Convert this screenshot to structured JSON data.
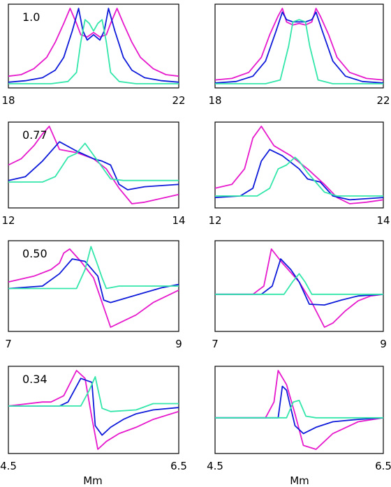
{
  "x_axis_label": "Mm",
  "colors": {
    "magenta": "#e619cc",
    "blue": "#0d1ad9",
    "green": "#33e6aa",
    "frame": "#000000"
  },
  "chart_data": [
    {
      "type": "line",
      "panel_label": "1.0",
      "x_ticks": [
        "18",
        "22"
      ],
      "xlim": [
        18,
        22
      ],
      "series": [
        {
          "color": "#e619cc",
          "x": [
            18,
            18.3,
            18.6,
            18.9,
            19.1,
            19.3,
            19.45,
            19.6,
            19.7,
            19.85,
            20,
            20.15,
            20.3,
            20.4,
            20.55,
            20.7,
            20.9,
            21.1,
            21.4,
            21.7,
            22
          ],
          "y": [
            0.1,
            0.12,
            0.2,
            0.35,
            0.55,
            0.8,
            1.0,
            0.8,
            0.65,
            0.62,
            0.68,
            0.62,
            0.65,
            0.8,
            1.0,
            0.8,
            0.55,
            0.35,
            0.2,
            0.12,
            0.1
          ]
        },
        {
          "color": "#0d1ad9",
          "x": [
            18,
            18.4,
            18.8,
            19.1,
            19.3,
            19.5,
            19.65,
            19.75,
            19.85,
            20,
            20.15,
            20.25,
            20.35,
            20.5,
            20.7,
            20.9,
            21.2,
            21.6,
            22
          ],
          "y": [
            0.02,
            0.04,
            0.08,
            0.18,
            0.35,
            0.7,
            1.0,
            0.7,
            0.58,
            0.65,
            0.58,
            0.7,
            1.0,
            0.7,
            0.35,
            0.18,
            0.08,
            0.04,
            0.02
          ]
        },
        {
          "color": "#33e6aa",
          "x": [
            18,
            19,
            19.4,
            19.6,
            19.7,
            19.8,
            19.9,
            20,
            20.1,
            20.2,
            20.3,
            20.4,
            20.6,
            21,
            22
          ],
          "y": [
            0,
            0,
            0.03,
            0.15,
            0.55,
            0.85,
            0.8,
            0.7,
            0.8,
            0.85,
            0.55,
            0.15,
            0.03,
            0,
            0
          ]
        }
      ]
    },
    {
      "type": "line",
      "panel_label": "",
      "x_ticks": [
        "18",
        "22"
      ],
      "xlim": [
        18,
        22
      ],
      "series": [
        {
          "color": "#e619cc",
          "x": [
            18,
            18.4,
            18.8,
            19.1,
            19.3,
            19.5,
            19.6,
            19.7,
            19.85,
            20,
            20.15,
            20.3,
            20.4,
            20.5,
            20.7,
            20.9,
            21.2,
            21.6,
            22
          ],
          "y": [
            0.05,
            0.07,
            0.15,
            0.35,
            0.65,
            0.9,
            1.0,
            0.82,
            0.78,
            0.8,
            0.78,
            0.82,
            1.0,
            0.9,
            0.65,
            0.35,
            0.15,
            0.07,
            0.05
          ]
        },
        {
          "color": "#0d1ad9",
          "x": [
            18,
            18.5,
            18.9,
            19.2,
            19.45,
            19.6,
            19.7,
            19.85,
            20,
            20.15,
            20.3,
            20.4,
            20.55,
            20.8,
            21.1,
            21.5,
            22
          ],
          "y": [
            0.01,
            0.03,
            0.1,
            0.3,
            0.7,
            0.95,
            0.85,
            0.82,
            0.82,
            0.82,
            0.85,
            0.95,
            0.7,
            0.3,
            0.1,
            0.03,
            0.01
          ]
        },
        {
          "color": "#33e6aa",
          "x": [
            18,
            19.2,
            19.55,
            19.75,
            19.85,
            20,
            20.15,
            20.25,
            20.45,
            20.8,
            22
          ],
          "y": [
            0,
            0,
            0.05,
            0.5,
            0.82,
            0.85,
            0.82,
            0.5,
            0.05,
            0,
            0
          ]
        }
      ]
    },
    {
      "type": "line",
      "panel_label": "0.77",
      "x_ticks": [
        "12",
        "14"
      ],
      "xlim": [
        12,
        14
      ],
      "series": [
        {
          "color": "#e619cc",
          "x": [
            12,
            12.15,
            12.3,
            12.4,
            12.48,
            12.6,
            12.8,
            13,
            13.15,
            13.3,
            13.45,
            13.6,
            13.8,
            14
          ],
          "y": [
            0.5,
            0.58,
            0.75,
            0.9,
            1.0,
            0.7,
            0.66,
            0.58,
            0.45,
            0.2,
            0.0,
            0.02,
            0.07,
            0.12
          ]
        },
        {
          "color": "#0d1ad9",
          "x": [
            12,
            12.2,
            12.4,
            12.6,
            12.8,
            13,
            13.1,
            13.2,
            13.3,
            13.4,
            13.6,
            14
          ],
          "y": [
            0.3,
            0.35,
            0.55,
            0.8,
            0.68,
            0.58,
            0.55,
            0.5,
            0.25,
            0.18,
            0.22,
            0.25
          ]
        },
        {
          "color": "#33e6aa",
          "x": [
            12,
            12.4,
            12.55,
            12.7,
            12.8,
            12.9,
            13.05,
            13.2,
            13.35,
            14
          ],
          "y": [
            0.28,
            0.28,
            0.35,
            0.6,
            0.65,
            0.78,
            0.55,
            0.32,
            0.3,
            0.3
          ]
        }
      ]
    },
    {
      "type": "line",
      "panel_label": "",
      "x_ticks": [
        "12",
        "14"
      ],
      "xlim": [
        12,
        14
      ],
      "series": [
        {
          "color": "#e619cc",
          "x": [
            12,
            12.2,
            12.35,
            12.45,
            12.55,
            12.7,
            12.9,
            13.1,
            13.3,
            13.45,
            13.6,
            13.8,
            14
          ],
          "y": [
            0.2,
            0.25,
            0.45,
            0.85,
            1.0,
            0.75,
            0.62,
            0.45,
            0.25,
            0.08,
            0.0,
            0.02,
            0.05
          ]
        },
        {
          "color": "#0d1ad9",
          "x": [
            12,
            12.3,
            12.45,
            12.55,
            12.65,
            12.8,
            13,
            13.1,
            13.25,
            13.4,
            13.6,
            14
          ],
          "y": [
            0.08,
            0.1,
            0.2,
            0.55,
            0.7,
            0.62,
            0.45,
            0.32,
            0.28,
            0.1,
            0.05,
            0.08
          ]
        },
        {
          "color": "#33e6aa",
          "x": [
            12,
            12.5,
            12.65,
            12.75,
            12.85,
            12.95,
            13,
            13.1,
            13.3,
            13.45,
            14
          ],
          "y": [
            0.1,
            0.1,
            0.2,
            0.45,
            0.5,
            0.6,
            0.55,
            0.4,
            0.15,
            0.1,
            0.1
          ]
        }
      ]
    },
    {
      "type": "line",
      "panel_label": "0.50",
      "x_ticks": [
        "7",
        "9"
      ],
      "xlim": [
        7,
        9
      ],
      "series": [
        {
          "color": "#e619cc",
          "x": [
            7,
            7.3,
            7.5,
            7.6,
            7.65,
            7.72,
            7.85,
            8,
            8.1,
            8.2,
            8.3,
            8.5,
            8.7,
            9
          ],
          "y": [
            0.55,
            0.62,
            0.7,
            0.78,
            0.9,
            0.95,
            0.8,
            0.6,
            0.3,
            0.0,
            0.05,
            0.15,
            0.3,
            0.45
          ]
        },
        {
          "color": "#0d1ad9",
          "x": [
            7,
            7.4,
            7.6,
            7.75,
            7.9,
            8.05,
            8.12,
            8.2,
            8.4,
            8.6,
            8.8,
            9
          ],
          "y": [
            0.47,
            0.5,
            0.65,
            0.83,
            0.8,
            0.62,
            0.33,
            0.3,
            0.36,
            0.42,
            0.48,
            0.52
          ]
        },
        {
          "color": "#33e6aa",
          "x": [
            7,
            7.8,
            7.9,
            7.97,
            8.05,
            8.1,
            8.15,
            8.3,
            9
          ],
          "y": [
            0.47,
            0.47,
            0.7,
            0.98,
            0.75,
            0.6,
            0.47,
            0.5,
            0.5
          ]
        }
      ]
    },
    {
      "type": "line",
      "panel_label": "",
      "x_ticks": [
        "7",
        "9"
      ],
      "xlim": [
        7,
        9
      ],
      "series": [
        {
          "color": "#e619cc",
          "x": [
            7,
            7.45,
            7.58,
            7.67,
            7.8,
            8,
            8.15,
            8.3,
            8.4,
            8.55,
            8.7,
            8.85,
            9
          ],
          "y": [
            0.4,
            0.4,
            0.5,
            0.95,
            0.78,
            0.55,
            0.3,
            0.0,
            0.05,
            0.2,
            0.32,
            0.38,
            0.4
          ]
        },
        {
          "color": "#0d1ad9",
          "x": [
            7,
            7.55,
            7.68,
            7.78,
            7.9,
            8,
            8.12,
            8.3,
            8.5,
            8.7,
            9
          ],
          "y": [
            0.4,
            0.4,
            0.5,
            0.83,
            0.7,
            0.55,
            0.28,
            0.27,
            0.33,
            0.38,
            0.4
          ]
        },
        {
          "color": "#33e6aa",
          "x": [
            7,
            7.82,
            7.92,
            8,
            8.07,
            8.15,
            8.3,
            9
          ],
          "y": [
            0.4,
            0.4,
            0.55,
            0.65,
            0.55,
            0.4,
            0.4,
            0.4
          ]
        }
      ]
    },
    {
      "type": "line",
      "panel_label": "0.34",
      "x_ticks": [
        "4.5",
        "6.5"
      ],
      "xlim": [
        4.5,
        6.5
      ],
      "series": [
        {
          "color": "#e619cc",
          "x": [
            4.5,
            4.9,
            5,
            5.15,
            5.3,
            5.4,
            5.48,
            5.55,
            5.65,
            5.8,
            6,
            6.2,
            6.5
          ],
          "y": [
            0.55,
            0.6,
            0.6,
            0.68,
            1.0,
            0.9,
            0.4,
            0.0,
            0.1,
            0.2,
            0.28,
            0.38,
            0.48
          ]
        },
        {
          "color": "#0d1ad9",
          "x": [
            4.5,
            5.1,
            5.2,
            5.35,
            5.48,
            5.52,
            5.6,
            5.7,
            5.85,
            6,
            6.2,
            6.5
          ],
          "y": [
            0.55,
            0.55,
            0.6,
            0.9,
            0.85,
            0.3,
            0.18,
            0.28,
            0.38,
            0.45,
            0.5,
            0.53
          ]
        },
        {
          "color": "#33e6aa",
          "x": [
            4.5,
            5.35,
            5.45,
            5.52,
            5.6,
            5.7,
            6,
            6.2,
            6.5
          ],
          "y": [
            0.55,
            0.55,
            0.75,
            0.92,
            0.52,
            0.48,
            0.5,
            0.58,
            0.58
          ]
        }
      ]
    },
    {
      "type": "line",
      "panel_label": "",
      "x_ticks": [
        "4.5",
        "6.5"
      ],
      "xlim": [
        4.5,
        6.5
      ],
      "series": [
        {
          "color": "#e619cc",
          "x": [
            4.5,
            5.1,
            5.2,
            5.25,
            5.35,
            5.45,
            5.55,
            5.7,
            5.9,
            6.2,
            6.5
          ],
          "y": [
            0.4,
            0.4,
            0.6,
            1.0,
            0.82,
            0.45,
            0.05,
            0.0,
            0.2,
            0.35,
            0.4
          ]
        },
        {
          "color": "#0d1ad9",
          "x": [
            4.5,
            5.25,
            5.3,
            5.35,
            5.45,
            5.55,
            5.7,
            5.9,
            6.2,
            6.5
          ],
          "y": [
            0.4,
            0.4,
            0.8,
            0.75,
            0.3,
            0.2,
            0.28,
            0.35,
            0.38,
            0.4
          ]
        },
        {
          "color": "#33e6aa",
          "x": [
            4.5,
            5.35,
            5.43,
            5.5,
            5.58,
            5.7,
            6.5
          ],
          "y": [
            0.4,
            0.4,
            0.6,
            0.62,
            0.42,
            0.4,
            0.4
          ]
        }
      ]
    }
  ]
}
